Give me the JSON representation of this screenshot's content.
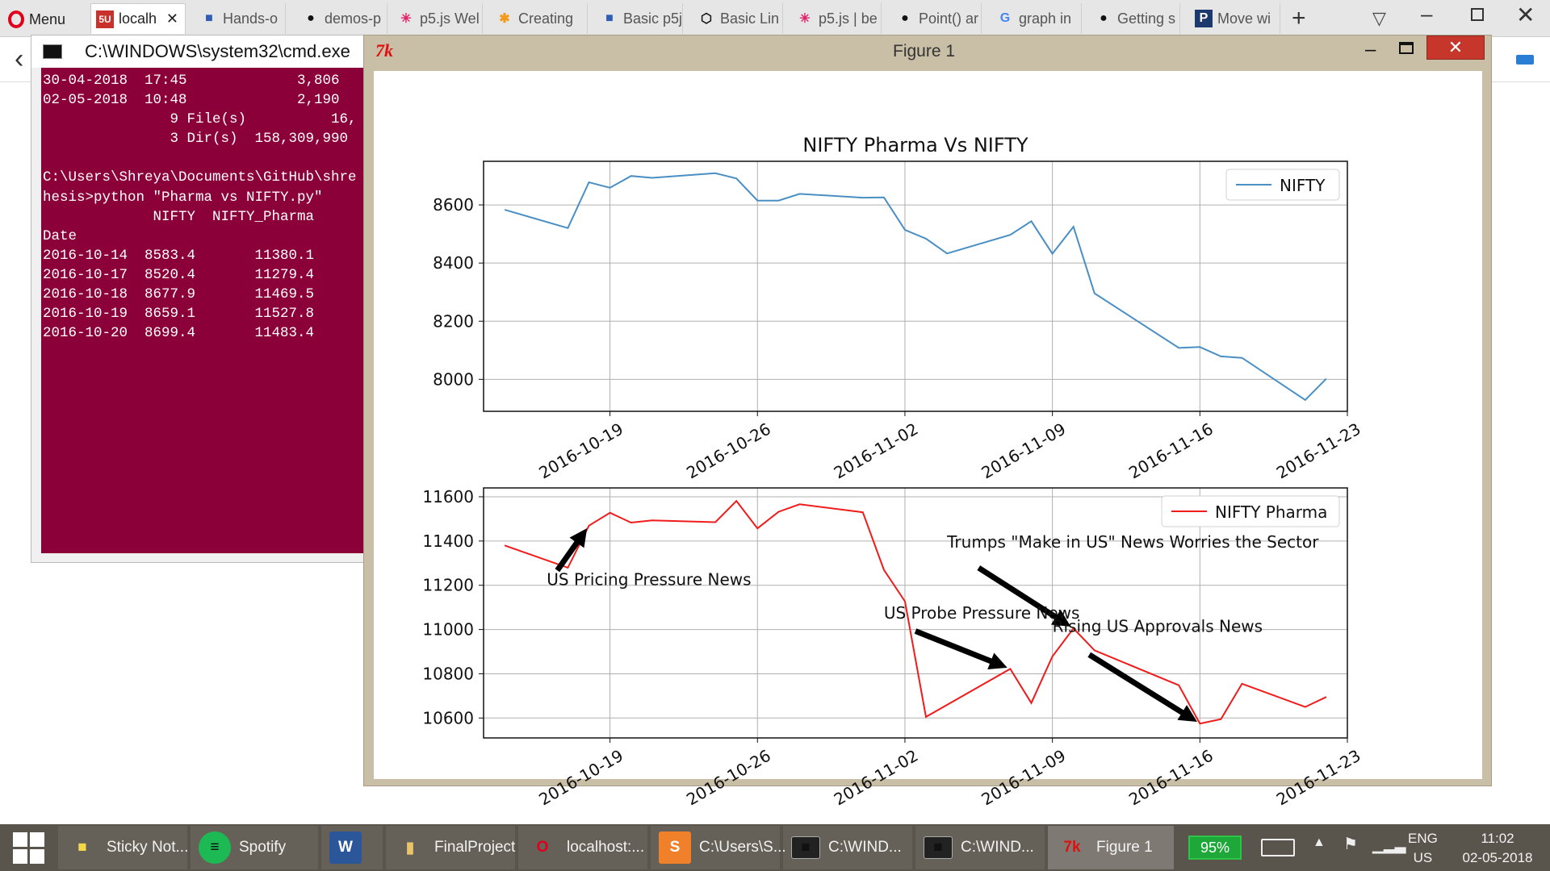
{
  "browser": {
    "menu_label": "Menu",
    "tabs": [
      {
        "label": "localh",
        "icon": "5U"
      },
      {
        "label": "Hands-o",
        "icon": "doc"
      },
      {
        "label": "demos-p",
        "icon": "github"
      },
      {
        "label": "p5.js Wel",
        "icon": "star"
      },
      {
        "label": "Creating",
        "icon": "asterisk"
      },
      {
        "label": "Basic p5j",
        "icon": "doc"
      },
      {
        "label": "Basic Lin",
        "icon": "codepen"
      },
      {
        "label": "p5.js | be",
        "icon": "star"
      },
      {
        "label": "Point() ar",
        "icon": "github"
      },
      {
        "label": "graph in",
        "icon": "google"
      },
      {
        "label": "Getting s",
        "icon": "github"
      },
      {
        "label": "Move wi",
        "icon": "P"
      }
    ],
    "new_tab": "+"
  },
  "cmd": {
    "title": "C:\\WINDOWS\\system32\\cmd.exe",
    "lines": [
      "30-04-2018  17:45             3,806 ",
      "02-05-2018  10:48             2,190 ",
      "               9 File(s)          16,",
      "               3 Dir(s)  158,309,990",
      "",
      "C:\\Users\\Shreya\\Documents\\GitHub\\shre",
      "hesis>python \"Pharma vs NIFTY.py\"",
      "             NIFTY  NIFTY_Pharma",
      "Date",
      "2016-10-14  8583.4       11380.1",
      "2016-10-17  8520.4       11279.4",
      "2016-10-18  8677.9       11469.5",
      "2016-10-19  8659.1       11527.8",
      "2016-10-20  8699.4       11483.4"
    ]
  },
  "figure": {
    "window_title": "Figure 1",
    "app_icon": "7k"
  },
  "chart_data": [
    {
      "type": "line",
      "title": "NIFTY Pharma Vs NIFTY",
      "xlabel": "",
      "ylabel": "",
      "x": [
        "2016-10-14",
        "2016-10-17",
        "2016-10-18",
        "2016-10-19",
        "2016-10-20",
        "2016-10-21",
        "2016-10-24",
        "2016-10-25",
        "2016-10-26",
        "2016-10-27",
        "2016-10-28",
        "2016-10-31",
        "2016-11-01",
        "2016-11-02",
        "2016-11-03",
        "2016-11-04",
        "2016-11-07",
        "2016-11-08",
        "2016-11-09",
        "2016-11-10",
        "2016-11-11",
        "2016-11-15",
        "2016-11-16",
        "2016-11-17",
        "2016-11-18",
        "2016-11-21",
        "2016-11-22"
      ],
      "series": [
        {
          "name": "NIFTY",
          "color": "#4a8fc4",
          "values": [
            8583.4,
            8520.4,
            8677.9,
            8659.1,
            8699.4,
            8693,
            8709,
            8691,
            8615,
            8615,
            8638,
            8625,
            8626,
            8514,
            8484,
            8433,
            8497,
            8544,
            8432,
            8525,
            8296,
            8108,
            8111,
            8079,
            8074,
            7929,
            8002
          ]
        }
      ],
      "xlim": [
        "2016-10-13",
        "2016-11-23"
      ],
      "ylim": [
        7890,
        8750
      ],
      "yticks": [
        8000,
        8200,
        8400,
        8600
      ],
      "xticks": [
        "2016-10-19",
        "2016-10-26",
        "2016-11-02",
        "2016-11-09",
        "2016-11-16",
        "2016-11-23"
      ],
      "legend": "top-right",
      "grid": true
    },
    {
      "type": "line",
      "xlabel": "",
      "ylabel": "",
      "x": [
        "2016-10-14",
        "2016-10-17",
        "2016-10-18",
        "2016-10-19",
        "2016-10-20",
        "2016-10-21",
        "2016-10-24",
        "2016-10-25",
        "2016-10-26",
        "2016-10-27",
        "2016-10-28",
        "2016-10-31",
        "2016-11-01",
        "2016-11-02",
        "2016-11-03",
        "2016-11-07",
        "2016-11-08",
        "2016-11-09",
        "2016-11-10",
        "2016-11-11",
        "2016-11-15",
        "2016-11-16",
        "2016-11-17",
        "2016-11-18",
        "2016-11-21",
        "2016-11-22"
      ],
      "series": [
        {
          "name": "NIFTY Pharma",
          "color": "#f01b1b",
          "values": [
            11380.1,
            11279.4,
            11469.5,
            11527.8,
            11483.4,
            11493,
            11485,
            11581,
            11457,
            11532,
            11566,
            11530,
            11270,
            11127,
            10605,
            10822,
            10668,
            10878,
            11005,
            10906,
            10748,
            10575,
            10595,
            10755,
            10650,
            10695
          ]
        }
      ],
      "xlim": [
        "2016-10-13",
        "2016-11-23"
      ],
      "ylim": [
        10510,
        11640
      ],
      "yticks": [
        10600,
        10800,
        11000,
        11200,
        11400,
        11600
      ],
      "xticks": [
        "2016-10-19",
        "2016-10-26",
        "2016-11-02",
        "2016-11-09",
        "2016-11-16",
        "2016-11-23"
      ],
      "legend": "top-right",
      "grid": true,
      "annotations": [
        {
          "text": "US Pricing Pressure News",
          "point": [
            "2016-10-18",
            11469.5
          ],
          "text_pos": [
            "2016-10-16",
            11200
          ]
        },
        {
          "text": "Trumps \"Make in US\" News Worries the Sector",
          "point": [
            "2016-11-10",
            11005
          ],
          "text_pos": [
            "2016-11-04",
            11370
          ]
        },
        {
          "text": "US Probe Pressure News",
          "point": [
            "2016-11-07",
            10822
          ],
          "text_pos": [
            "2016-11-01",
            11050
          ]
        },
        {
          "text": "Rising US Approvals News",
          "point": [
            "2016-11-16",
            10575
          ],
          "text_pos": [
            "2016-11-09",
            10990
          ]
        }
      ]
    }
  ],
  "taskbar": {
    "items": [
      {
        "label": "Sticky Not...",
        "icon": "sticky-notes"
      },
      {
        "label": "Spotify",
        "icon": "spotify"
      },
      {
        "label": "",
        "icon": "word"
      },
      {
        "label": "FinalProject",
        "icon": "folder"
      },
      {
        "label": "localhost:...",
        "icon": "opera"
      },
      {
        "label": "C:\\Users\\S...",
        "icon": "sublime"
      },
      {
        "label": "C:\\WIND...",
        "icon": "cmd"
      },
      {
        "label": "C:\\WIND...",
        "icon": "cmd"
      },
      {
        "label": "Figure 1",
        "icon": "tk"
      }
    ],
    "battery": "95%",
    "language": "ENG",
    "region": "US",
    "time": "11:02",
    "date": "02-05-2018"
  }
}
